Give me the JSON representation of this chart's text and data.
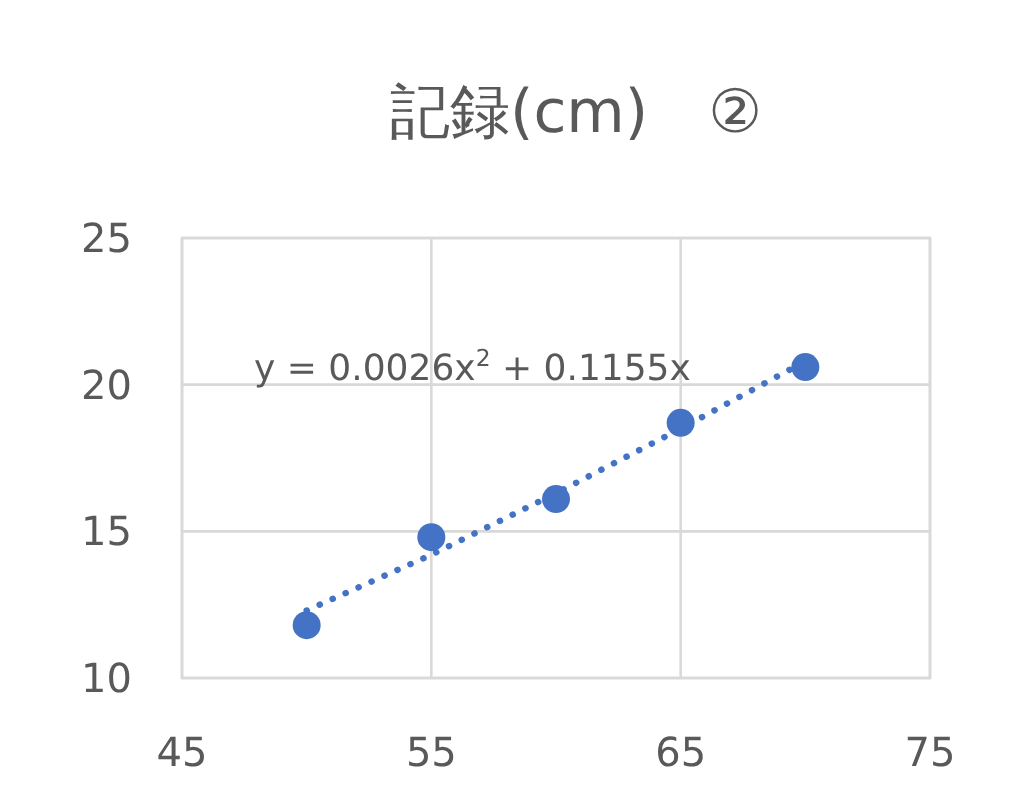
{
  "chart_data": {
    "type": "scatter",
    "title": "記録(cm)　②",
    "xlim": [
      45,
      75
    ],
    "xticks": [
      45,
      55,
      65,
      75
    ],
    "ylim": [
      10,
      25
    ],
    "yticks": [
      10,
      15,
      20,
      25
    ],
    "grid": true,
    "series": [
      {
        "color": "#4472c4",
        "marker": "circle",
        "x": [
          50,
          55,
          60,
          65,
          70
        ],
        "values": [
          11.8,
          14.8,
          16.1,
          18.7,
          20.6
        ]
      },
      {
        "type": "line",
        "color": "#4472c4",
        "marker": "none",
        "line_style": "dotted",
        "x": [
          50,
          55,
          60,
          65,
          70
        ],
        "values": [
          12.3,
          14.2,
          16.3,
          18.5,
          20.8
        ]
      }
    ],
    "annotations": [
      "y = 0.0026x$^{2}$ + 0.1155x"
    ]
  }
}
